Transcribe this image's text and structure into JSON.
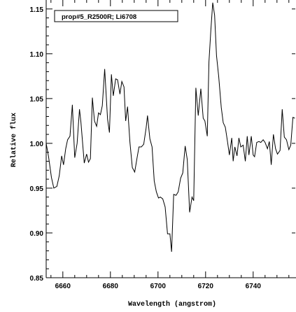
{
  "chart_data": {
    "type": "line",
    "xlabel": "Wavelength (angstrom)",
    "ylabel": "Relative flux",
    "xlim": [
      6653,
      6758
    ],
    "ylim": [
      0.85,
      1.16
    ],
    "xticks": [
      6660,
      6680,
      6700,
      6720,
      6740
    ],
    "yticks": [
      0.85,
      0.9,
      0.95,
      1.0,
      1.05,
      1.1,
      1.15
    ],
    "ytick_labels": [
      "0.85",
      "0.90",
      "0.95",
      "1.00",
      "1.05",
      "1.10",
      "1.15"
    ],
    "legend": {
      "text": "prop#5_R2500R; Li6708",
      "placement": "top-left"
    },
    "series": [
      {
        "x": [
          6653.0,
          6654.0,
          6655.2,
          6656.2,
          6657.5,
          6658.5,
          6659.5,
          6660.3,
          6661.2,
          6662.0,
          6663.0,
          6664.0,
          6665.0,
          6666.0,
          6667.0,
          6667.6,
          6668.4,
          6669.0,
          6670.0,
          6670.8,
          6671.6,
          6672.4,
          6673.3,
          6674.2,
          6675.0,
          6675.8,
          6676.6,
          6677.6,
          6678.8,
          6679.6,
          6680.4,
          6681.2,
          6682.2,
          6683.0,
          6684.0,
          6684.8,
          6685.7,
          6686.4,
          6687.2,
          6688.2,
          6689.2,
          6690.2,
          6691.2,
          6692.0,
          6693.0,
          6694.0,
          6695.0,
          6695.6,
          6696.6,
          6697.5,
          6698.4,
          6699.3,
          6700.2,
          6701.0,
          6702.0,
          6703.0,
          6704.0,
          6705.0,
          6705.7,
          6706.6,
          6707.6,
          6708.5,
          6709.5,
          6710.4,
          6711.4,
          6712.3,
          6713.3,
          6714.3,
          6715.0,
          6715.9,
          6716.9,
          6718.0,
          6719.0,
          6719.7,
          6720.7,
          6721.4,
          6722.2,
          6723.0,
          6723.8,
          6724.6,
          6725.5,
          6726.6,
          6727.4,
          6728.3,
          6729.2,
          6730.0,
          6731.0,
          6731.6,
          6732.3,
          6733.2,
          6734.0,
          6734.8,
          6735.8,
          6736.7,
          6737.5,
          6738.2,
          6739.2,
          6740.0,
          6740.6,
          6741.5,
          6742.4,
          6743.2,
          6744.2,
          6745.0,
          6746.0,
          6746.8,
          6747.6,
          6748.5,
          6749.4,
          6750.2,
          6751.3,
          6752.2,
          6753.1,
          6754.0,
          6755.0,
          6755.8,
          6756.7,
          6757.5
        ],
        "y": [
          1.0,
          0.985,
          0.962,
          0.95,
          0.952,
          0.964,
          0.986,
          0.976,
          0.994,
          1.004,
          1.008,
          1.043,
          0.984,
          1.0,
          1.038,
          1.024,
          0.997,
          0.978,
          0.988,
          0.979,
          0.983,
          1.051,
          1.025,
          1.019,
          1.034,
          1.032,
          1.042,
          1.083,
          1.027,
          1.012,
          1.077,
          1.053,
          1.072,
          1.071,
          1.055,
          1.069,
          1.063,
          1.025,
          1.041,
          1.001,
          0.973,
          0.968,
          0.984,
          0.996,
          0.996,
          0.999,
          1.017,
          1.031,
          1.005,
          0.996,
          0.958,
          0.946,
          0.939,
          0.94,
          0.938,
          0.929,
          0.899,
          0.899,
          0.879,
          0.943,
          0.942,
          0.946,
          0.961,
          0.967,
          0.997,
          0.982,
          0.923,
          0.94,
          0.936,
          1.062,
          1.031,
          1.061,
          1.028,
          1.025,
          1.008,
          1.091,
          1.126,
          1.157,
          1.143,
          1.098,
          1.075,
          1.04,
          1.023,
          1.018,
          1.002,
          0.987,
          1.006,
          0.98,
          0.996,
          0.986,
          1.006,
          0.996,
          0.998,
          0.98,
          1.008,
          0.987,
          1.008,
          0.987,
          0.985,
          1.001,
          1.002,
          1.001,
          1.004,
          1.001,
          0.994,
          1.002,
          0.976,
          1.01,
          0.994,
          0.988,
          0.992,
          1.038,
          1.007,
          1.004,
          0.993,
          0.998,
          1.029,
          1.028
        ]
      }
    ]
  }
}
